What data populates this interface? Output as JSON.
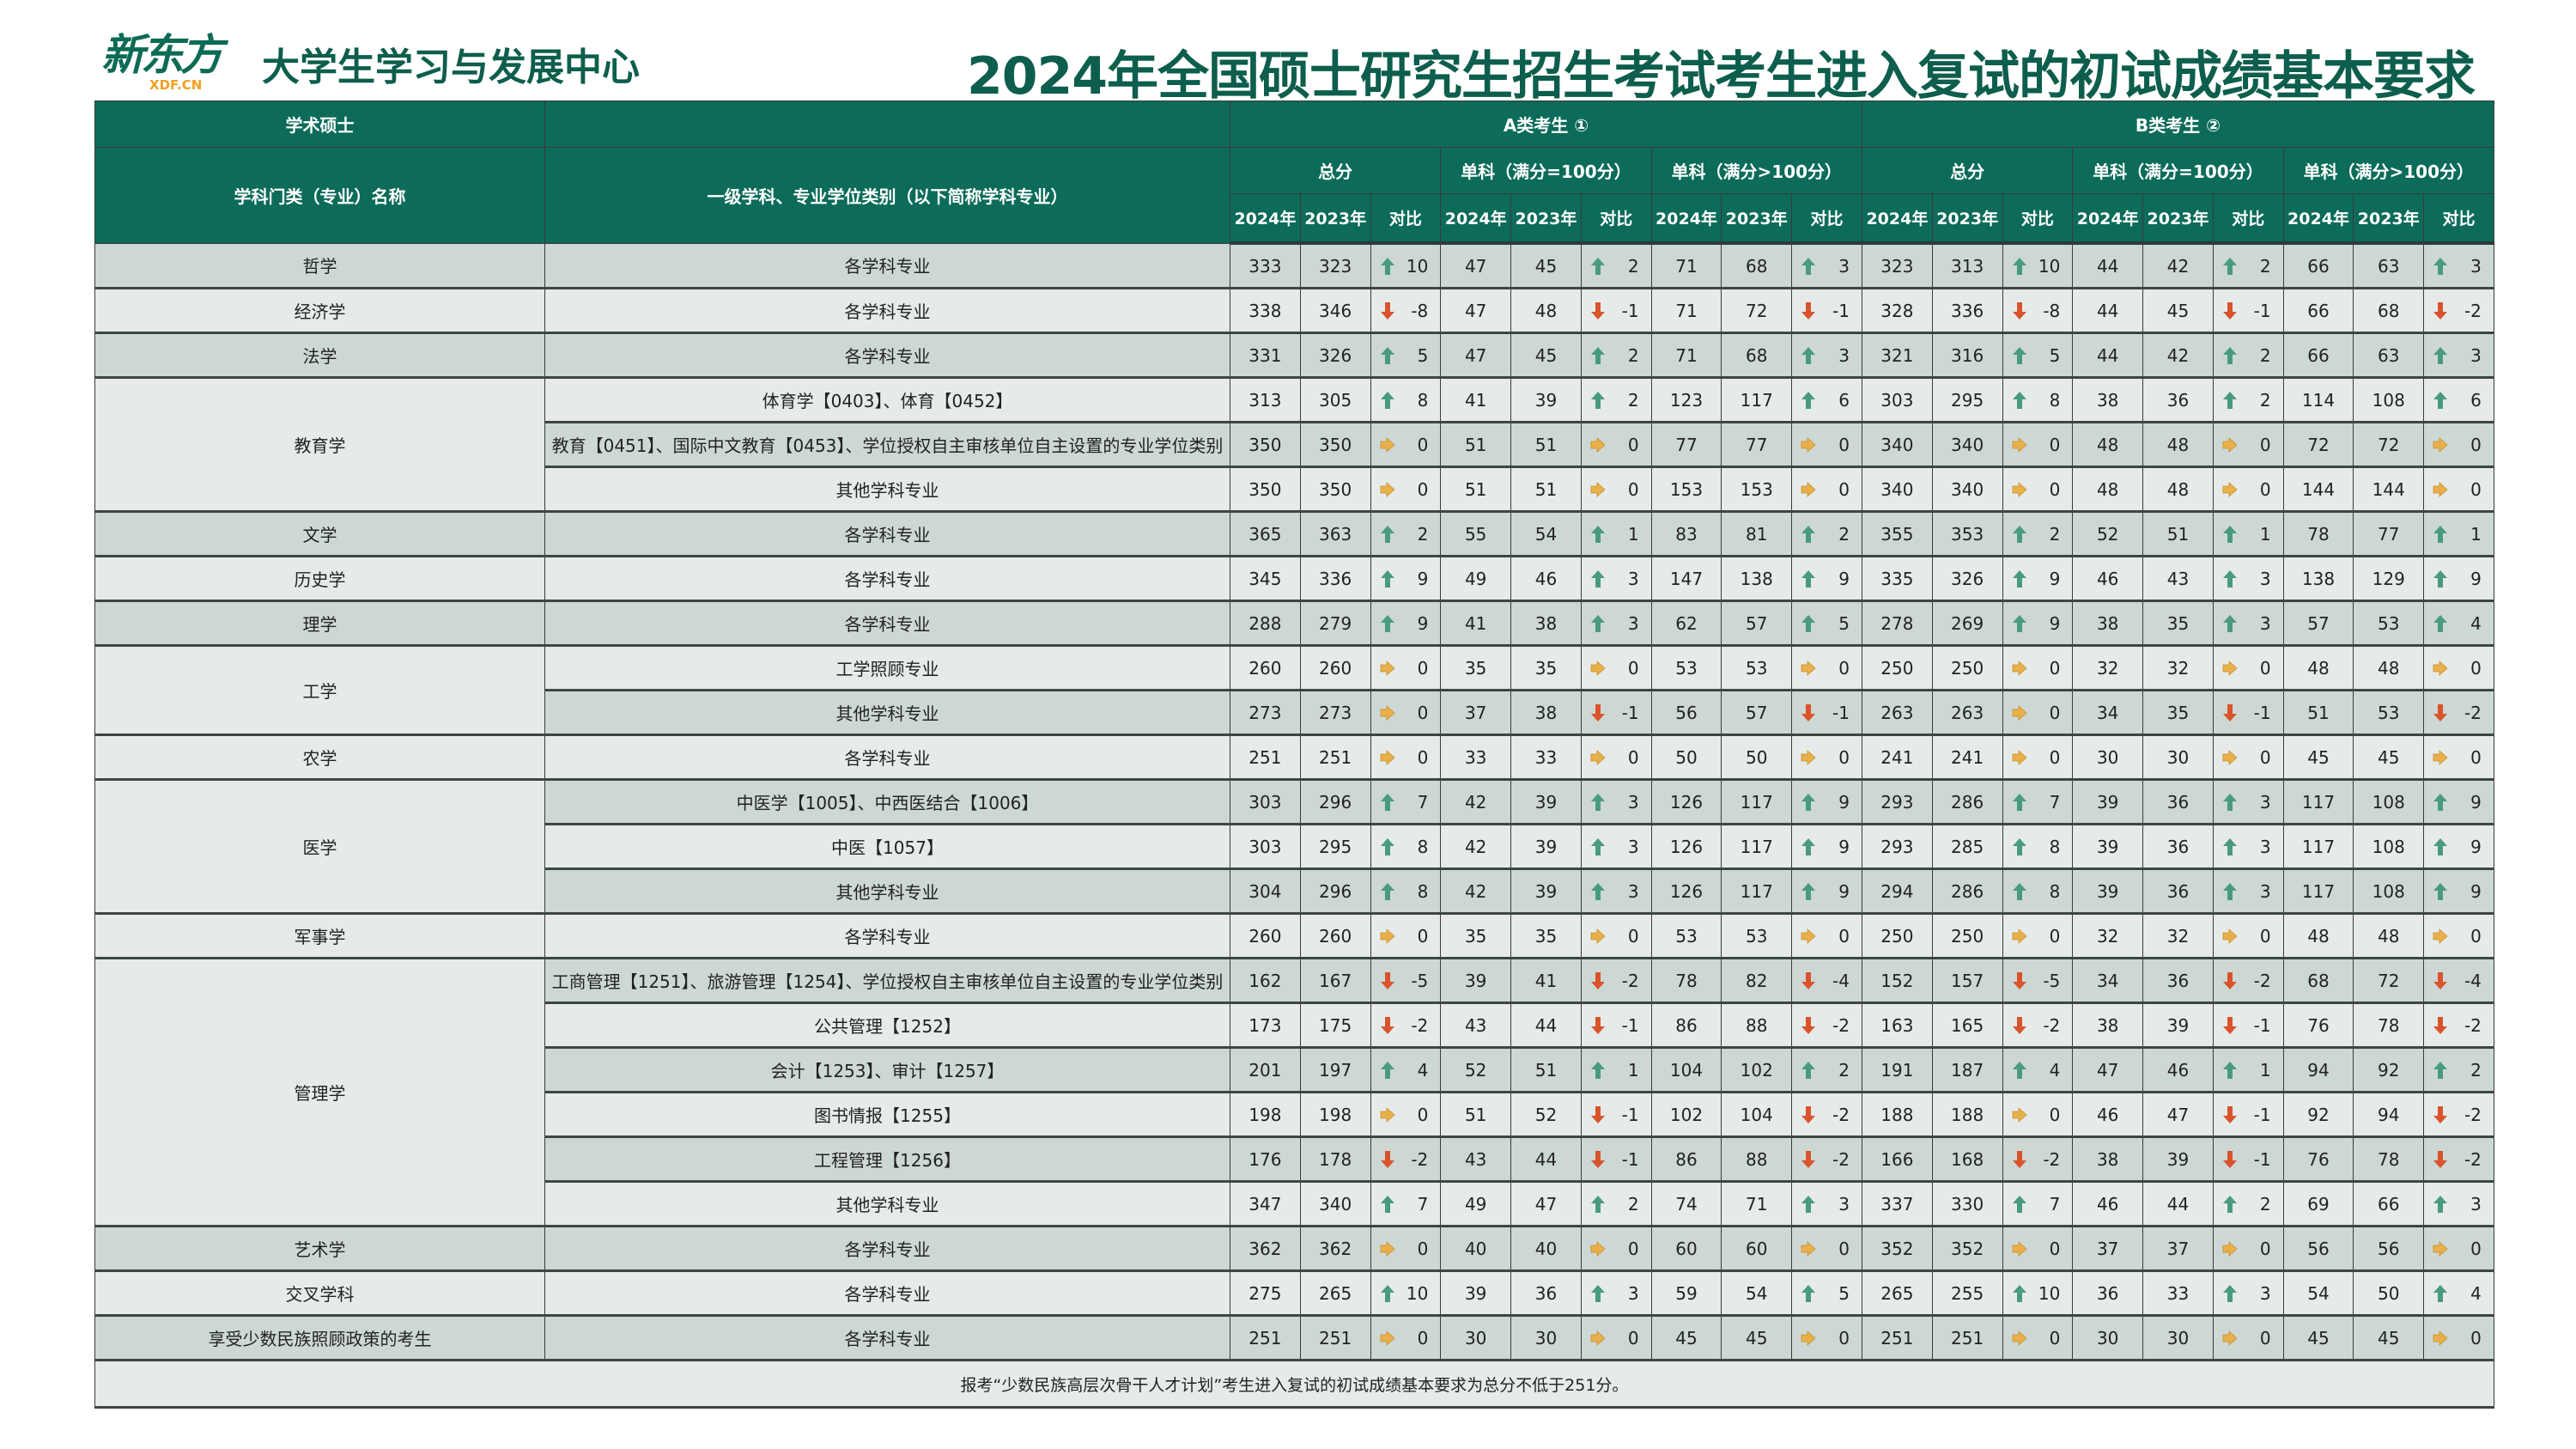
{
  "header": {
    "logo_text": "新东方",
    "logo_sub": "XDF.CN",
    "subtitle": "大学生学习与发展中心",
    "title": "2024年全国硕士研究生招生考试考生进入复试的初试成绩基本要求"
  },
  "table": {
    "col0_top": "学术硕士",
    "col0_label": "学科门类（专业）名称",
    "col1_label": "一级学科、专业学位类别（以下简称学科专业）",
    "group_a": "A类考生 ①",
    "group_b": "B类考生 ②",
    "sub_groups": [
      "总分",
      "单科（满分=100分）",
      "单科（满分>100分）",
      "总分",
      "单科（满分=100分）",
      "单科（满分>100分）"
    ],
    "year_cols": [
      "2024年",
      "2023年",
      "对比"
    ],
    "colors": {
      "header": "#0c6b59",
      "up": "#4a9a80",
      "down": "#d9532b",
      "flat": "#e8b04a"
    },
    "groups": [
      {
        "category": "哲学",
        "items": [
          {
            "subject": "各学科专业",
            "values": [
              333,
              323,
              10,
              47,
              45,
              2,
              71,
              68,
              3,
              323,
              313,
              10,
              44,
              42,
              2,
              66,
              63,
              3
            ]
          }
        ]
      },
      {
        "category": "经济学",
        "items": [
          {
            "subject": "各学科专业",
            "values": [
              338,
              346,
              -8,
              47,
              48,
              -1,
              71,
              72,
              -1,
              328,
              336,
              -8,
              44,
              45,
              -1,
              66,
              68,
              -2
            ]
          }
        ]
      },
      {
        "category": "法学",
        "items": [
          {
            "subject": "各学科专业",
            "values": [
              331,
              326,
              5,
              47,
              45,
              2,
              71,
              68,
              3,
              321,
              316,
              5,
              44,
              42,
              2,
              66,
              63,
              3
            ]
          }
        ]
      },
      {
        "category": "教育学",
        "items": [
          {
            "subject": "体育学【0403】、体育【0452】",
            "values": [
              313,
              305,
              8,
              41,
              39,
              2,
              123,
              117,
              6,
              303,
              295,
              8,
              38,
              36,
              2,
              114,
              108,
              6
            ]
          },
          {
            "subject": "教育【0451】、国际中文教育【0453】、学位授权自主审核单位自主设置的专业学位类别",
            "values": [
              350,
              350,
              0,
              51,
              51,
              0,
              77,
              77,
              0,
              340,
              340,
              0,
              48,
              48,
              0,
              72,
              72,
              0
            ]
          },
          {
            "subject": "其他学科专业",
            "values": [
              350,
              350,
              0,
              51,
              51,
              0,
              153,
              153,
              0,
              340,
              340,
              0,
              48,
              48,
              0,
              144,
              144,
              0
            ]
          }
        ]
      },
      {
        "category": "文学",
        "items": [
          {
            "subject": "各学科专业",
            "values": [
              365,
              363,
              2,
              55,
              54,
              1,
              83,
              81,
              2,
              355,
              353,
              2,
              52,
              51,
              1,
              78,
              77,
              1
            ]
          }
        ]
      },
      {
        "category": "历史学",
        "items": [
          {
            "subject": "各学科专业",
            "values": [
              345,
              336,
              9,
              49,
              46,
              3,
              147,
              138,
              9,
              335,
              326,
              9,
              46,
              43,
              3,
              138,
              129,
              9
            ]
          }
        ]
      },
      {
        "category": "理学",
        "items": [
          {
            "subject": "各学科专业",
            "values": [
              288,
              279,
              9,
              41,
              38,
              3,
              62,
              57,
              5,
              278,
              269,
              9,
              38,
              35,
              3,
              57,
              53,
              4
            ]
          }
        ]
      },
      {
        "category": "工学",
        "items": [
          {
            "subject": "工学照顾专业",
            "values": [
              260,
              260,
              0,
              35,
              35,
              0,
              53,
              53,
              0,
              250,
              250,
              0,
              32,
              32,
              0,
              48,
              48,
              0
            ]
          },
          {
            "subject": "其他学科专业",
            "values": [
              273,
              273,
              0,
              37,
              38,
              -1,
              56,
              57,
              -1,
              263,
              263,
              0,
              34,
              35,
              -1,
              51,
              53,
              -2
            ]
          }
        ]
      },
      {
        "category": "农学",
        "items": [
          {
            "subject": "各学科专业",
            "values": [
              251,
              251,
              0,
              33,
              33,
              0,
              50,
              50,
              0,
              241,
              241,
              0,
              30,
              30,
              0,
              45,
              45,
              0
            ]
          }
        ]
      },
      {
        "category": "医学",
        "items": [
          {
            "subject": "中医学【1005】、中西医结合【1006】",
            "values": [
              303,
              296,
              7,
              42,
              39,
              3,
              126,
              117,
              9,
              293,
              286,
              7,
              39,
              36,
              3,
              117,
              108,
              9
            ]
          },
          {
            "subject": "中医【1057】",
            "values": [
              303,
              295,
              8,
              42,
              39,
              3,
              126,
              117,
              9,
              293,
              285,
              8,
              39,
              36,
              3,
              117,
              108,
              9
            ]
          },
          {
            "subject": "其他学科专业",
            "values": [
              304,
              296,
              8,
              42,
              39,
              3,
              126,
              117,
              9,
              294,
              286,
              8,
              39,
              36,
              3,
              117,
              108,
              9
            ]
          }
        ]
      },
      {
        "category": "军事学",
        "items": [
          {
            "subject": "各学科专业",
            "values": [
              260,
              260,
              0,
              35,
              35,
              0,
              53,
              53,
              0,
              250,
              250,
              0,
              32,
              32,
              0,
              48,
              48,
              0
            ]
          }
        ]
      },
      {
        "category": "管理学",
        "items": [
          {
            "subject": "工商管理【1251】、旅游管理【1254】、学位授权自主审核单位自主设置的专业学位类别",
            "values": [
              162,
              167,
              -5,
              39,
              41,
              -2,
              78,
              82,
              -4,
              152,
              157,
              -5,
              34,
              36,
              -2,
              68,
              72,
              -4
            ]
          },
          {
            "subject": "公共管理【1252】",
            "values": [
              173,
              175,
              -2,
              43,
              44,
              -1,
              86,
              88,
              -2,
              163,
              165,
              -2,
              38,
              39,
              -1,
              76,
              78,
              -2
            ]
          },
          {
            "subject": "会计【1253】、审计【1257】",
            "values": [
              201,
              197,
              4,
              52,
              51,
              1,
              104,
              102,
              2,
              191,
              187,
              4,
              47,
              46,
              1,
              94,
              92,
              2
            ]
          },
          {
            "subject": "图书情报【1255】",
            "values": [
              198,
              198,
              0,
              51,
              52,
              -1,
              102,
              104,
              -2,
              188,
              188,
              0,
              46,
              47,
              -1,
              92,
              94,
              -2
            ]
          },
          {
            "subject": "工程管理【1256】",
            "values": [
              176,
              178,
              -2,
              43,
              44,
              -1,
              86,
              88,
              -2,
              166,
              168,
              -2,
              38,
              39,
              -1,
              76,
              78,
              -2
            ]
          },
          {
            "subject": "其他学科专业",
            "values": [
              347,
              340,
              7,
              49,
              47,
              2,
              74,
              71,
              3,
              337,
              330,
              7,
              46,
              44,
              2,
              69,
              66,
              3
            ]
          }
        ]
      },
      {
        "category": "艺术学",
        "items": [
          {
            "subject": "各学科专业",
            "values": [
              362,
              362,
              0,
              40,
              40,
              0,
              60,
              60,
              0,
              352,
              352,
              0,
              37,
              37,
              0,
              56,
              56,
              0
            ]
          }
        ]
      },
      {
        "category": "交叉学科",
        "items": [
          {
            "subject": "各学科专业",
            "values": [
              275,
              265,
              10,
              39,
              36,
              3,
              59,
              54,
              5,
              265,
              255,
              10,
              36,
              33,
              3,
              54,
              50,
              4
            ]
          }
        ]
      },
      {
        "category": "享受少数民族照顾政策的考生",
        "items": [
          {
            "subject": "各学科专业",
            "values": [
              251,
              251,
              0,
              30,
              30,
              0,
              45,
              45,
              0,
              251,
              251,
              0,
              30,
              30,
              0,
              45,
              45,
              0
            ]
          }
        ]
      }
    ],
    "note": "报考“少数民族高层次骨干人才计划”考生进入复试的初试成绩基本要求为总分不低于251分。"
  }
}
